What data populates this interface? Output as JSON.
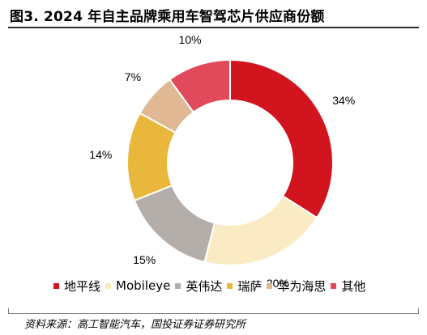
{
  "header": {
    "title": "图3. 2024 年自主品牌乘用车智驾芯片供应商份额"
  },
  "footer": {
    "source": "资料来源：高工智能汽车，国投证券证券研究所"
  },
  "colors": {
    "地平线": "#D2141E",
    "Mobileye": "#FBEBC4",
    "英伟达": "#B4AEAA",
    "瑞萨": "#E8B73C",
    "华为海思": "#E0B893",
    "其他": "#E04A5B"
  },
  "chart_data": {
    "type": "pie",
    "donut": true,
    "title": "2024 年自主品牌乘用车智驾芯片供应商份额",
    "legend_position": "bottom",
    "slices": [
      {
        "label": "地平线",
        "value": 34,
        "display": "34%",
        "color": "#D2141E"
      },
      {
        "label": "Mobileye",
        "value": 20,
        "display": "20%",
        "color": "#FBEBC4"
      },
      {
        "label": "英伟达",
        "value": 15,
        "display": "15%",
        "color": "#B4AEAA"
      },
      {
        "label": "瑞萨",
        "value": 14,
        "display": "14%",
        "color": "#E8B73C"
      },
      {
        "label": "华为海思",
        "value": 7,
        "display": "7%",
        "color": "#E0B893"
      },
      {
        "label": "其他",
        "value": 10,
        "display": "10%",
        "color": "#E04A5B"
      }
    ],
    "unit": "%"
  }
}
